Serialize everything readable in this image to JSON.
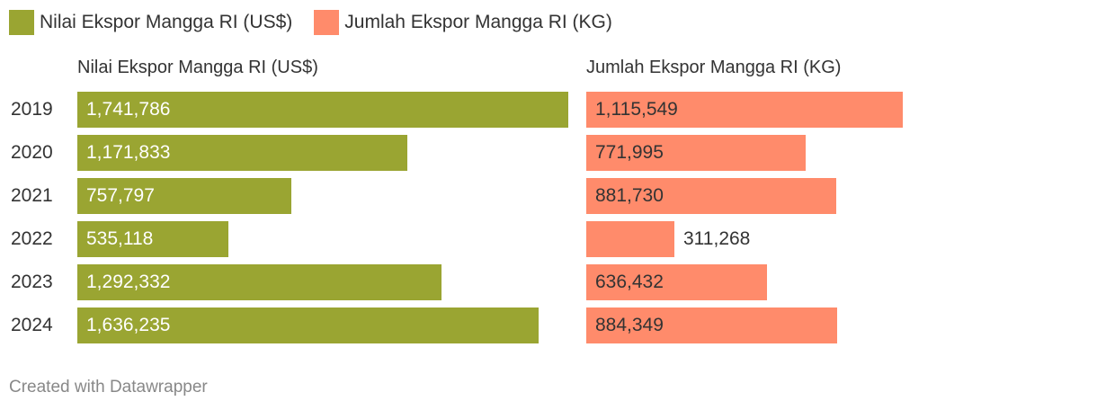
{
  "chart_data": {
    "type": "bar",
    "orientation": "horizontal",
    "categories": [
      "2019",
      "2020",
      "2021",
      "2022",
      "2023",
      "2024"
    ],
    "series": [
      {
        "name": "Nilai Ekspor Mangga RI (US$)",
        "color": "#9aa532",
        "values": [
          1741786,
          1171833,
          757797,
          535118,
          1292332,
          1636235
        ],
        "labels": [
          "1,741,786",
          "1,171,833",
          "757,797",
          "535,118",
          "1,292,332",
          "1,636,235"
        ]
      },
      {
        "name": "Jumlah Ekspor Mangga RI (KG)",
        "color": "#ff8b6b",
        "values": [
          1115549,
          771995,
          881730,
          311268,
          636432,
          884349
        ],
        "labels": [
          "1,115,549",
          "771,995",
          "881,730",
          "311,268",
          "636,432",
          "884,349"
        ]
      }
    ],
    "legend": "top-left",
    "grid": false
  },
  "footer": "Created with Datawrapper"
}
